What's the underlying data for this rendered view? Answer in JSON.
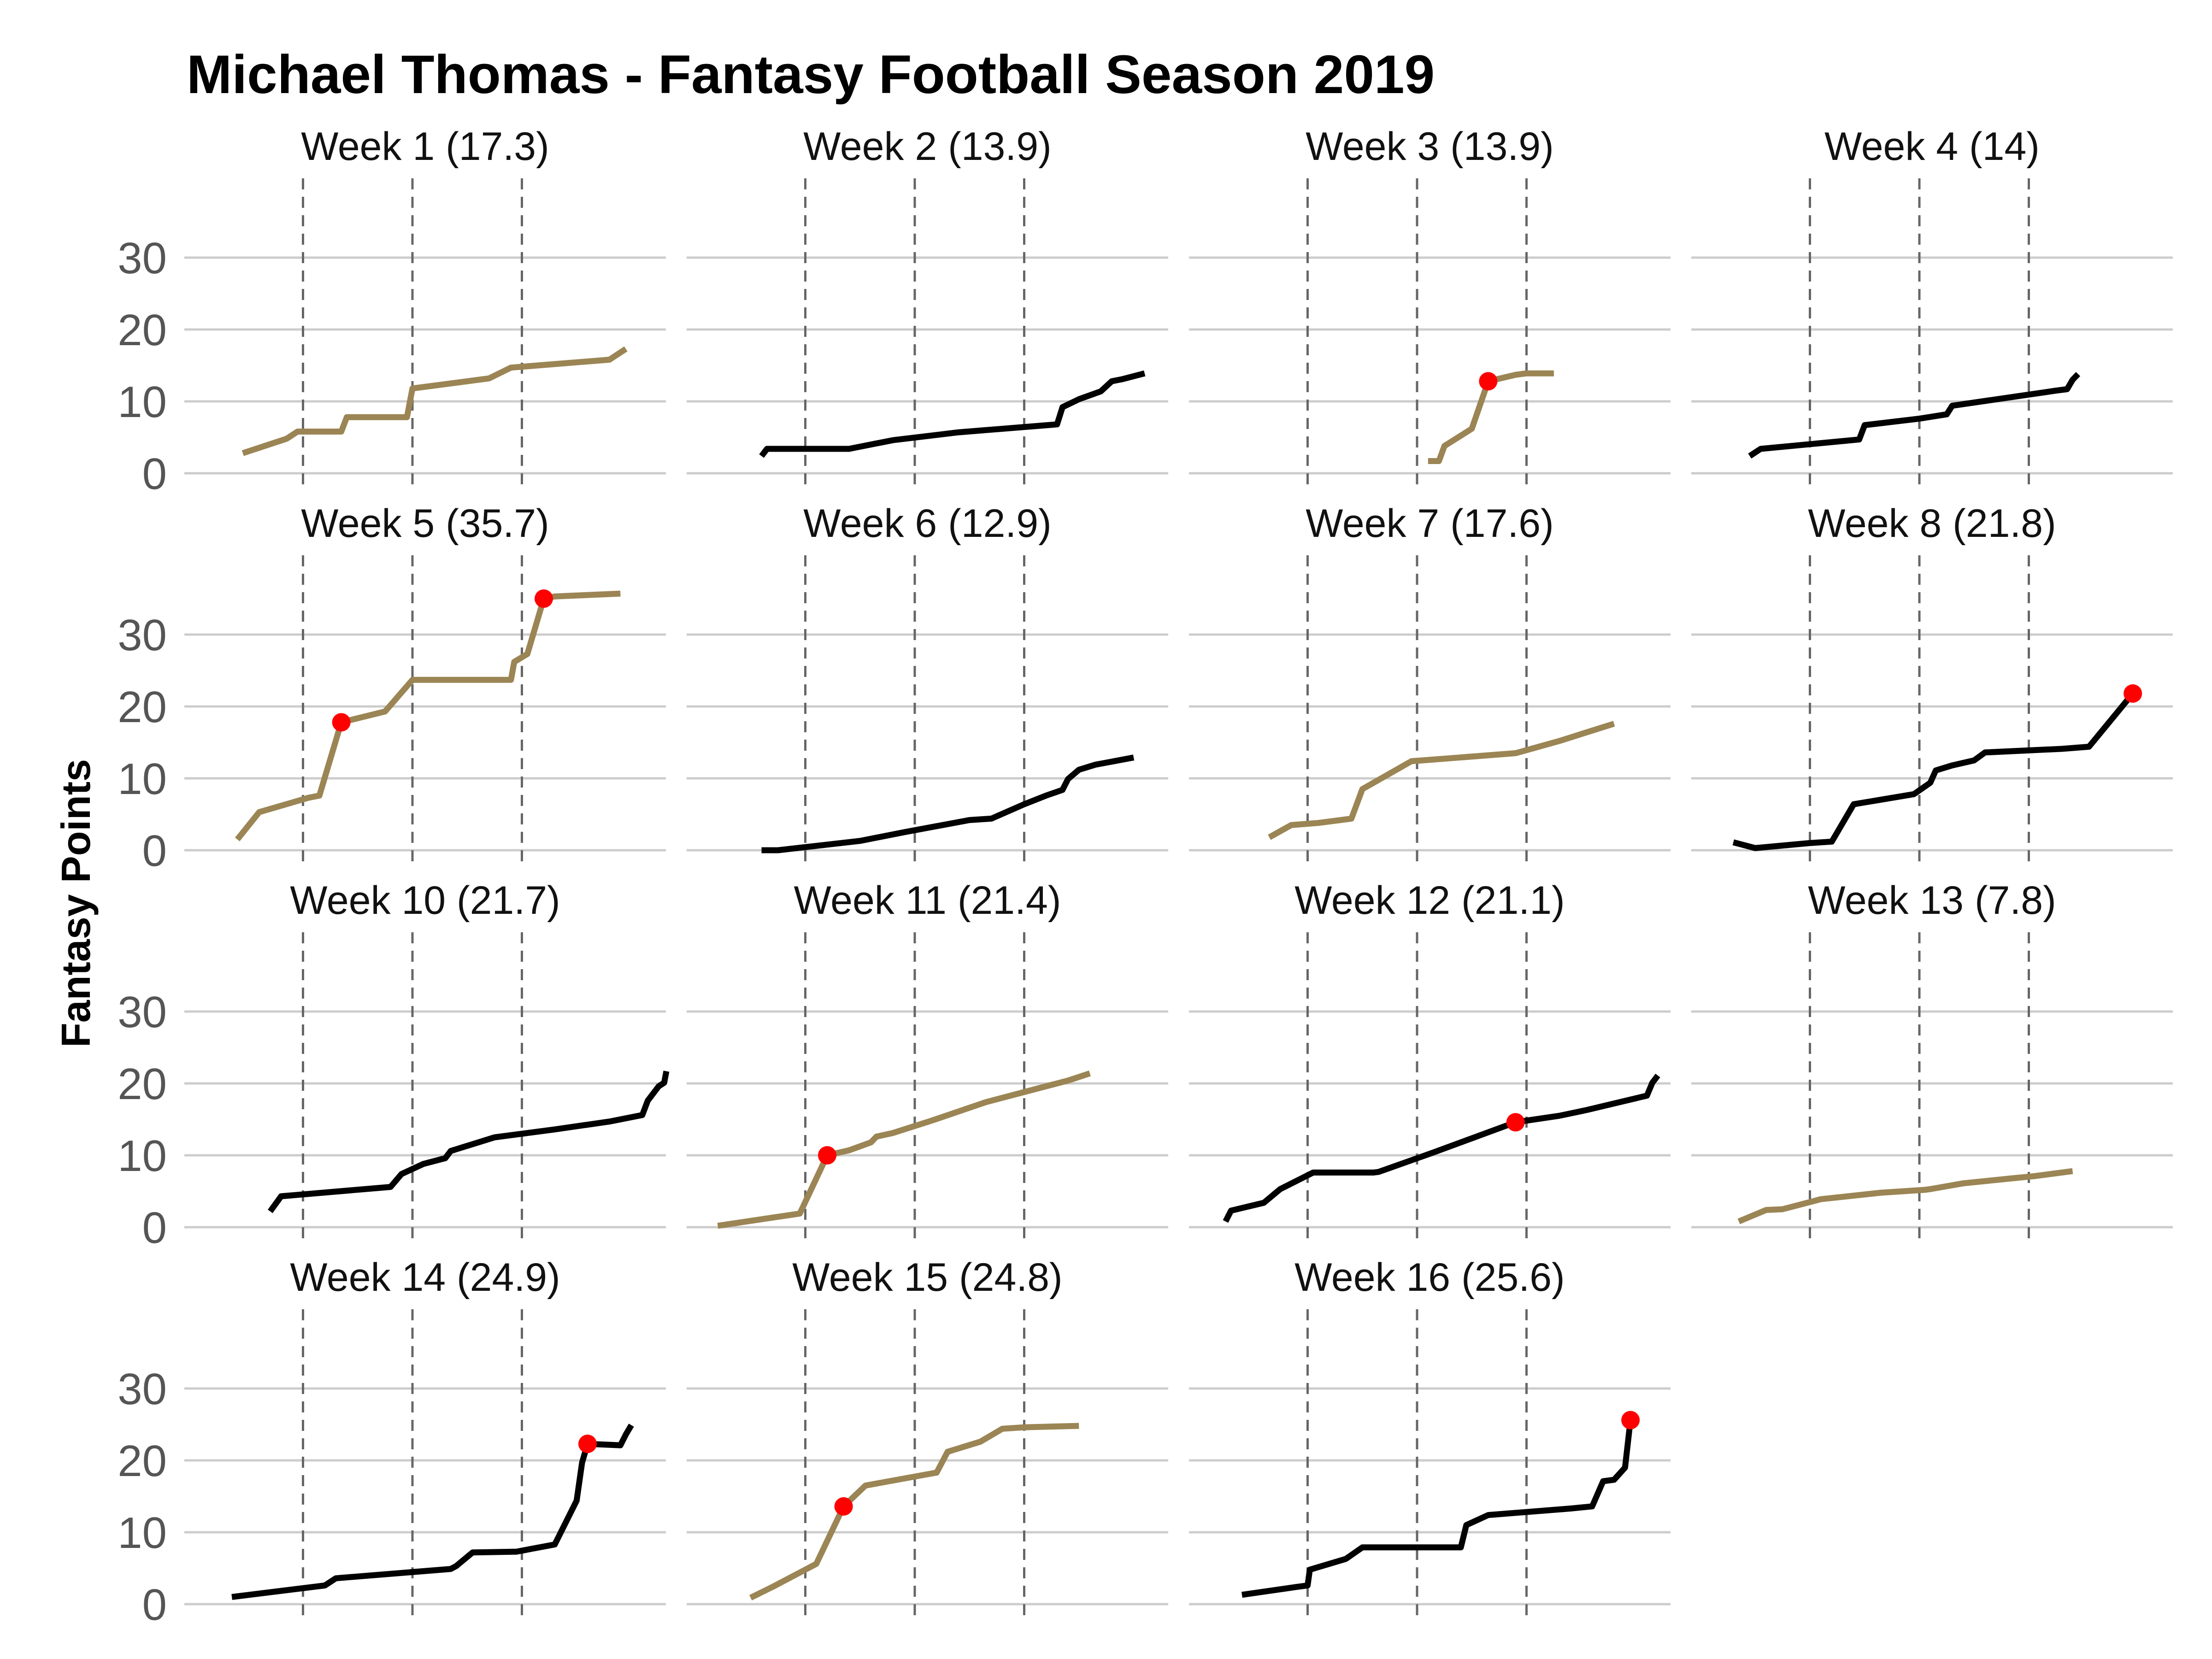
{
  "chart_data": {
    "type": "line",
    "title": "Michael Thomas - Fantasy Football Season 2019",
    "xlabel": "",
    "ylabel": "Fantasy Points",
    "ylim": [
      0,
      36
    ],
    "yticks": [
      0,
      10,
      20,
      30
    ],
    "xlim": [
      0,
      4.4
    ],
    "quarter_markers": [
      1,
      2,
      3
    ],
    "grid": "horizontal",
    "colors": {
      "gold": "#9B8554",
      "black": "#000000",
      "highlight": "#FF0000",
      "grid": "#CCCCCC",
      "quarter_line": "#666666"
    },
    "panels": [
      {
        "label": "Week 1 (17.3)",
        "color": "gold",
        "points": [
          [
            0.45,
            2.8
          ],
          [
            0.85,
            4.8
          ],
          [
            0.95,
            5.8
          ],
          [
            1.15,
            5.8
          ],
          [
            1.35,
            5.8
          ],
          [
            1.4,
            7.8
          ],
          [
            1.8,
            7.8
          ],
          [
            1.95,
            7.8
          ],
          [
            2.0,
            11.8
          ],
          [
            2.7,
            13.2
          ],
          [
            2.9,
            14.7
          ],
          [
            3.8,
            15.8
          ],
          [
            3.95,
            17.3
          ]
        ],
        "highlights": []
      },
      {
        "label": "Week 2 (13.9)",
        "color": "black",
        "points": [
          [
            0.6,
            2.4
          ],
          [
            0.65,
            3.4
          ],
          [
            1.4,
            3.4
          ],
          [
            1.8,
            4.6
          ],
          [
            2.4,
            5.7
          ],
          [
            3.3,
            6.8
          ],
          [
            3.35,
            9.2
          ],
          [
            3.5,
            10.3
          ],
          [
            3.7,
            11.4
          ],
          [
            3.8,
            12.8
          ],
          [
            3.9,
            13.1
          ],
          [
            4.1,
            13.9
          ]
        ],
        "highlights": []
      },
      {
        "label": "Week 3 (13.9)",
        "color": "gold",
        "points": [
          [
            2.1,
            1.7
          ],
          [
            2.2,
            1.7
          ],
          [
            2.25,
            3.8
          ],
          [
            2.5,
            6.2
          ],
          [
            2.65,
            12.8
          ],
          [
            2.9,
            13.7
          ],
          [
            3.0,
            13.9
          ],
          [
            3.25,
            13.9
          ]
        ],
        "highlights": [
          [
            2.65,
            12.8
          ]
        ]
      },
      {
        "label": "Week 4 (14)",
        "color": "black",
        "points": [
          [
            0.45,
            2.4
          ],
          [
            0.55,
            3.4
          ],
          [
            1.45,
            4.7
          ],
          [
            1.5,
            6.7
          ],
          [
            2.0,
            7.6
          ],
          [
            2.25,
            8.2
          ],
          [
            2.3,
            9.4
          ],
          [
            3.25,
            11.5
          ],
          [
            3.35,
            11.7
          ],
          [
            3.4,
            13.0
          ],
          [
            3.45,
            13.8
          ]
        ],
        "highlights": []
      },
      {
        "label": "Week 5 (35.7)",
        "color": "gold",
        "points": [
          [
            0.4,
            1.5
          ],
          [
            0.6,
            5.3
          ],
          [
            1.05,
            7.3
          ],
          [
            1.15,
            7.6
          ],
          [
            1.35,
            17.8
          ],
          [
            1.75,
            19.3
          ],
          [
            2.0,
            23.7
          ],
          [
            2.4,
            23.7
          ],
          [
            2.9,
            23.7
          ],
          [
            2.93,
            26.2
          ],
          [
            3.05,
            27.3
          ],
          [
            3.2,
            35.0
          ],
          [
            3.3,
            35.3
          ],
          [
            3.9,
            35.7
          ]
        ],
        "highlights": [
          [
            1.35,
            17.8
          ],
          [
            3.2,
            35.0
          ]
        ]
      },
      {
        "label": "Week 6 (12.9)",
        "color": "black",
        "points": [
          [
            0.6,
            0.0
          ],
          [
            0.75,
            0.0
          ],
          [
            1.5,
            1.3
          ],
          [
            1.9,
            2.5
          ],
          [
            2.5,
            4.2
          ],
          [
            2.7,
            4.4
          ],
          [
            3.0,
            6.4
          ],
          [
            3.2,
            7.6
          ],
          [
            3.35,
            8.4
          ],
          [
            3.4,
            9.9
          ],
          [
            3.5,
            11.2
          ],
          [
            3.65,
            11.9
          ],
          [
            4.0,
            12.9
          ]
        ],
        "highlights": []
      },
      {
        "label": "Week 7 (17.6)",
        "color": "gold",
        "points": [
          [
            0.65,
            1.8
          ],
          [
            0.85,
            3.5
          ],
          [
            1.1,
            3.8
          ],
          [
            1.4,
            4.4
          ],
          [
            1.5,
            8.5
          ],
          [
            1.95,
            12.4
          ],
          [
            2.05,
            12.5
          ],
          [
            2.9,
            13.5
          ],
          [
            3.3,
            15.2
          ],
          [
            3.8,
            17.6
          ]
        ],
        "highlights": []
      },
      {
        "label": "Week 8 (21.8)",
        "color": "black",
        "points": [
          [
            0.3,
            1.1
          ],
          [
            0.5,
            0.3
          ],
          [
            1.0,
            1.0
          ],
          [
            1.2,
            1.2
          ],
          [
            1.4,
            6.4
          ],
          [
            1.95,
            7.8
          ],
          [
            2.1,
            9.4
          ],
          [
            2.15,
            11.1
          ],
          [
            2.3,
            11.8
          ],
          [
            2.5,
            12.5
          ],
          [
            2.6,
            13.6
          ],
          [
            3.3,
            14.1
          ],
          [
            3.55,
            14.4
          ],
          [
            3.95,
            21.8
          ]
        ],
        "highlights": [
          [
            3.95,
            21.8
          ]
        ]
      },
      {
        "label": "Week 10 (21.7)",
        "color": "black",
        "points": [
          [
            0.7,
            2.2
          ],
          [
            0.8,
            4.3
          ],
          [
            1.8,
            5.6
          ],
          [
            1.9,
            7.4
          ],
          [
            2.1,
            8.8
          ],
          [
            2.3,
            9.6
          ],
          [
            2.35,
            10.6
          ],
          [
            2.75,
            12.5
          ],
          [
            3.3,
            13.6
          ],
          [
            3.8,
            14.7
          ],
          [
            4.1,
            15.6
          ],
          [
            4.15,
            17.6
          ],
          [
            4.25,
            19.6
          ],
          [
            4.3,
            20.1
          ],
          [
            4.32,
            21.7
          ]
        ],
        "highlights": []
      },
      {
        "label": "Week 11 (21.4)",
        "color": "gold",
        "points": [
          [
            0.2,
            0.2
          ],
          [
            0.95,
            1.9
          ],
          [
            1.2,
            10.0
          ],
          [
            1.4,
            10.7
          ],
          [
            1.6,
            11.8
          ],
          [
            1.65,
            12.6
          ],
          [
            1.8,
            13.1
          ],
          [
            2.15,
            14.8
          ],
          [
            2.65,
            17.4
          ],
          [
            3.2,
            19.6
          ],
          [
            3.3,
            20.0
          ],
          [
            3.4,
            20.4
          ],
          [
            3.6,
            21.4
          ]
        ],
        "highlights": [
          [
            1.2,
            10.0
          ]
        ]
      },
      {
        "label": "Week 12 (21.1)",
        "color": "black",
        "points": [
          [
            0.25,
            0.8
          ],
          [
            0.3,
            2.3
          ],
          [
            0.6,
            3.4
          ],
          [
            0.75,
            5.3
          ],
          [
            1.05,
            7.6
          ],
          [
            1.6,
            7.6
          ],
          [
            1.65,
            7.7
          ],
          [
            2.15,
            10.4
          ],
          [
            2.9,
            14.6
          ],
          [
            3.3,
            15.5
          ],
          [
            3.55,
            16.3
          ],
          [
            4.1,
            18.3
          ],
          [
            4.15,
            20.1
          ],
          [
            4.2,
            21.1
          ]
        ],
        "highlights": [
          [
            2.9,
            14.6
          ]
        ]
      },
      {
        "label": "Week 13 (7.8)",
        "color": "gold",
        "points": [
          [
            0.35,
            0.8
          ],
          [
            0.6,
            2.4
          ],
          [
            0.75,
            2.5
          ],
          [
            1.1,
            3.9
          ],
          [
            1.65,
            4.8
          ],
          [
            2.05,
            5.2
          ],
          [
            2.1,
            5.3
          ],
          [
            2.4,
            6.1
          ],
          [
            2.85,
            6.8
          ],
          [
            3.05,
            7.1
          ],
          [
            3.4,
            7.8
          ]
        ],
        "highlights": []
      },
      {
        "label": "Week 14 (24.9)",
        "color": "black",
        "points": [
          [
            0.35,
            1.0
          ],
          [
            1.2,
            2.6
          ],
          [
            1.3,
            3.6
          ],
          [
            2.35,
            4.9
          ],
          [
            2.4,
            5.3
          ],
          [
            2.55,
            7.2
          ],
          [
            2.95,
            7.3
          ],
          [
            3.3,
            8.3
          ],
          [
            3.5,
            14.4
          ],
          [
            3.55,
            19.7
          ],
          [
            3.6,
            22.3
          ],
          [
            3.9,
            22.1
          ],
          [
            3.95,
            23.6
          ],
          [
            4.0,
            24.9
          ]
        ],
        "highlights": [
          [
            3.6,
            22.3
          ]
        ]
      },
      {
        "label": "Week 15 (24.8)",
        "color": "gold",
        "points": [
          [
            0.5,
            0.9
          ],
          [
            0.7,
            2.4
          ],
          [
            1.1,
            5.6
          ],
          [
            1.35,
            13.6
          ],
          [
            1.55,
            16.5
          ],
          [
            2.2,
            18.3
          ],
          [
            2.3,
            21.2
          ],
          [
            2.6,
            22.6
          ],
          [
            2.8,
            24.4
          ],
          [
            3.0,
            24.6
          ],
          [
            3.5,
            24.8
          ]
        ],
        "highlights": [
          [
            1.35,
            13.6
          ]
        ]
      },
      {
        "label": "Week 16 (25.6)",
        "color": "black",
        "points": [
          [
            0.4,
            1.3
          ],
          [
            0.9,
            2.4
          ],
          [
            1.0,
            2.6
          ],
          [
            1.02,
            4.8
          ],
          [
            1.35,
            6.3
          ],
          [
            1.5,
            7.9
          ],
          [
            2.4,
            7.9
          ],
          [
            2.45,
            11.0
          ],
          [
            2.65,
            12.4
          ],
          [
            3.4,
            13.3
          ],
          [
            3.6,
            13.6
          ],
          [
            3.7,
            17.1
          ],
          [
            3.8,
            17.3
          ],
          [
            3.9,
            19.0
          ],
          [
            3.95,
            25.6
          ]
        ],
        "highlights": [
          [
            3.95,
            25.6
          ]
        ]
      }
    ]
  }
}
